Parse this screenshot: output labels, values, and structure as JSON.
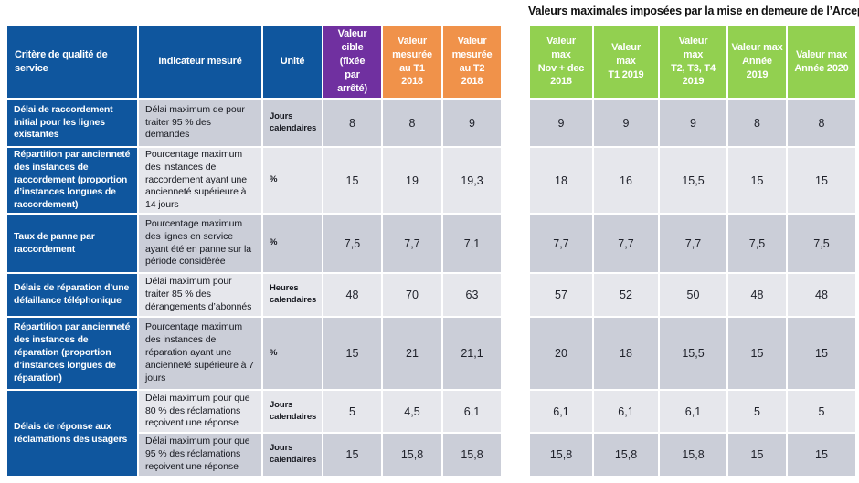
{
  "right_title": "Valeurs maximales imposées par la mise en demeure de l’Arcep",
  "colors": {
    "header_blue": "#0F569E",
    "target_purple": "#7030A0",
    "measured_orange": "#F0924A",
    "max_green": "#92D050",
    "row_dark": "#CBCED8",
    "row_light": "#E6E7EC"
  },
  "left_header": {
    "criterion": "Critère de qualité de\nservice",
    "indicator": "Indicateur mesuré",
    "unit": "Unité",
    "target": "Valeur\ncible\n(fixée\npar\narrêté)",
    "t1_2018": "Valeur\nmesurée\nau T1\n2018",
    "t2_2018": "Valeur\nmesurée\nau T2\n2018"
  },
  "right_header": {
    "max_novdec_2018": "Valeur\nmax\nNov + dec\n2018",
    "max_t1_2019": "Valeur\nmax\nT1 2019",
    "max_t234_2019": "Valeur\nmax\nT2, T3, T4\n2019",
    "max_annee_2019": "Valeur max\nAnnée\n2019",
    "max_annee_2020": "Valeur max\nAnnée 2020"
  },
  "rows": [
    {
      "criterion": "Délai de raccordement\ninitial pour les lignes\nexistantes",
      "indicator": "Délai maximum de pour\ntraiter 95 % des\ndemandes",
      "unit": "Jours\ncalendaires",
      "target": "8",
      "t1_2018": "8",
      "t2_2018": "9",
      "max_novdec_2018": "9",
      "max_t1_2019": "9",
      "max_t234_2019": "9",
      "max_annee_2019": "8",
      "max_annee_2020": "8"
    },
    {
      "criterion": "Répartition par ancienneté\ndes instances de\nraccordement (proportion\nd’instances longues de\nraccordement)",
      "indicator": "Pourcentage maximum\ndes instances de\nraccordement ayant une\nancienneté supérieure à\n14 jours",
      "unit": "%",
      "target": "15",
      "t1_2018": "19",
      "t2_2018": "19,3",
      "max_novdec_2018": "18",
      "max_t1_2019": "16",
      "max_t234_2019": "15,5",
      "max_annee_2019": "15",
      "max_annee_2020": "15"
    },
    {
      "criterion": "Taux de panne par\nraccordement",
      "indicator": "Pourcentage maximum\ndes lignes en service\nayant été en panne sur la\npériode considérée",
      "unit": "%",
      "target": "7,5",
      "t1_2018": "7,7",
      "t2_2018": "7,1",
      "max_novdec_2018": "7,7",
      "max_t1_2019": "7,7",
      "max_t234_2019": "7,7",
      "max_annee_2019": "7,5",
      "max_annee_2020": "7,5"
    },
    {
      "criterion": "Délais de réparation d’une\ndéfaillance téléphonique",
      "indicator": "Délai maximum pour\ntraiter 85 % des\ndérangements d’abonnés",
      "unit": "Heures\ncalendaires",
      "target": "48",
      "t1_2018": "70",
      "t2_2018": "63",
      "max_novdec_2018": "57",
      "max_t1_2019": "52",
      "max_t234_2019": "50",
      "max_annee_2019": "48",
      "max_annee_2020": "48"
    },
    {
      "criterion": "Répartition par ancienneté\ndes instances de\nréparation (proportion\nd’instances longues de\nréparation)",
      "indicator": "Pourcentage maximum\ndes instances de\nréparation ayant une\nancienneté supérieure à 7\njours",
      "unit": "%",
      "target": "15",
      "t1_2018": "21",
      "t2_2018": "21,1",
      "max_novdec_2018": "20",
      "max_t1_2019": "18",
      "max_t234_2019": "15,5",
      "max_annee_2019": "15",
      "max_annee_2020": "15"
    },
    {
      "criterion": "Délais de réponse aux\nréclamations des usagers",
      "indicator": "Délai maximum pour que\n80 % des réclamations\nreçoivent une réponse",
      "unit": "Jours\ncalendaires",
      "target": "5",
      "t1_2018": "4,5",
      "t2_2018": "6,1",
      "max_novdec_2018": "6,1",
      "max_t1_2019": "6,1",
      "max_t234_2019": "6,1",
      "max_annee_2019": "5",
      "max_annee_2020": "5"
    },
    {
      "indicator": "Délai maximum pour que\n95 % des réclamations\nreçoivent une réponse",
      "unit": "Jours\ncalendaires",
      "target": "15",
      "t1_2018": "15,8",
      "t2_2018": "15,8",
      "max_novdec_2018": "15,8",
      "max_t1_2019": "15,8",
      "max_t234_2019": "15,8",
      "max_annee_2019": "15",
      "max_annee_2020": "15"
    }
  ]
}
